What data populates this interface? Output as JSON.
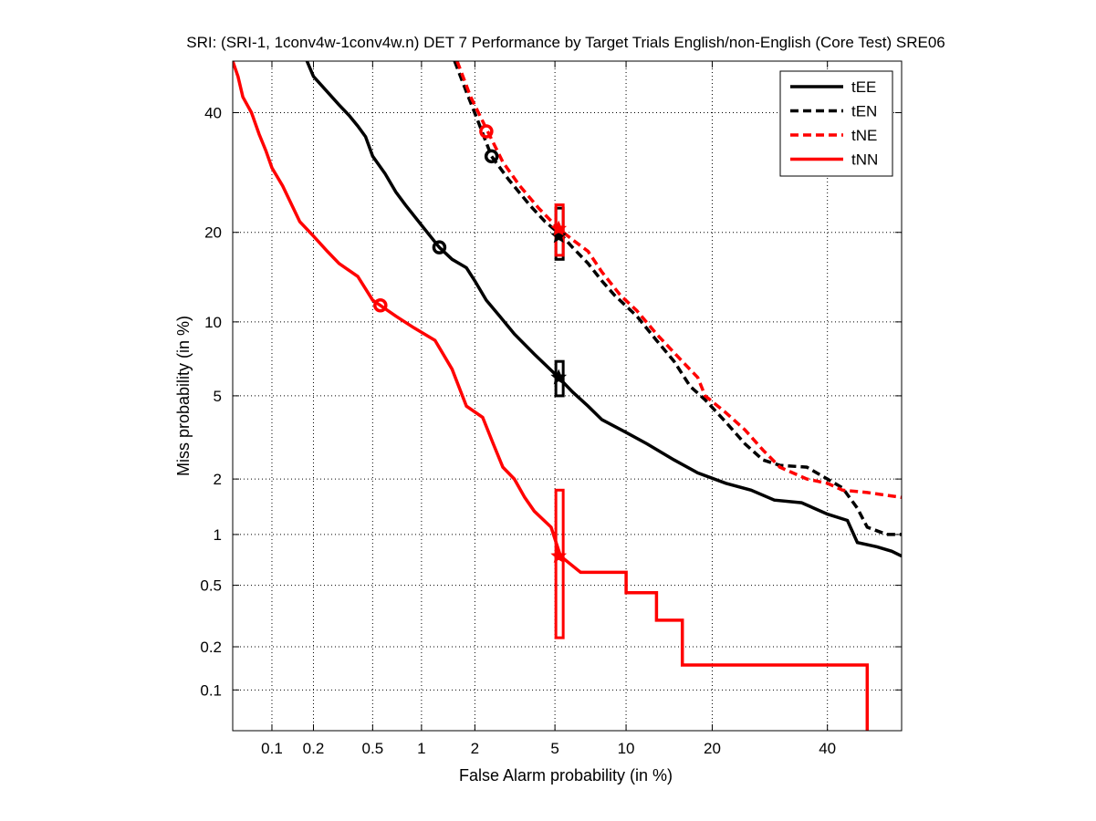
{
  "chart_data": {
    "type": "line",
    "title": "SRI: (SRI-1, 1conv4w-1conv4w.n) DET 7 Performance by Target Trials English/non-English (Core Test) SRE06",
    "xlabel": "False Alarm probability (in %)",
    "ylabel": "Miss probability (in %)",
    "x_scale": "probit",
    "y_scale": "probit",
    "xlim": [
      0.05,
      55
    ],
    "ylim": [
      0.05,
      50
    ],
    "x_ticks": [
      0.1,
      0.2,
      0.5,
      1,
      2,
      5,
      10,
      20,
      40
    ],
    "x_tick_labels": [
      "0.1",
      "0.2",
      "0.5",
      "1",
      "2",
      "5",
      "10",
      "20",
      "40"
    ],
    "y_ticks": [
      0.1,
      0.2,
      0.5,
      1,
      2,
      5,
      10,
      20,
      40
    ],
    "y_tick_labels": [
      "0.1",
      "0.2",
      "0.5",
      "1",
      "2",
      "5",
      "10",
      "20",
      "40"
    ],
    "grid": true,
    "legend_position": "top-right",
    "series": [
      {
        "name": "tEE",
        "color": "#000000",
        "style": "solid",
        "points": [
          [
            0.18,
            50
          ],
          [
            0.2,
            47
          ],
          [
            0.25,
            44
          ],
          [
            0.3,
            41.5
          ],
          [
            0.35,
            39.5
          ],
          [
            0.4,
            37.5
          ],
          [
            0.45,
            35.5
          ],
          [
            0.5,
            32
          ],
          [
            0.6,
            29
          ],
          [
            0.7,
            26
          ],
          [
            0.8,
            24
          ],
          [
            1.0,
            21
          ],
          [
            1.27,
            18
          ],
          [
            1.5,
            16.5
          ],
          [
            1.8,
            15.5
          ],
          [
            2.0,
            14
          ],
          [
            2.3,
            12
          ],
          [
            2.7,
            10.5
          ],
          [
            3.2,
            9
          ],
          [
            4.0,
            7.5
          ],
          [
            5.2,
            6
          ],
          [
            6.0,
            5.2
          ],
          [
            7.0,
            4.5
          ],
          [
            8.0,
            3.9
          ],
          [
            10.0,
            3.4
          ],
          [
            12.0,
            3.0
          ],
          [
            15.0,
            2.5
          ],
          [
            18.0,
            2.15
          ],
          [
            22.0,
            1.9
          ],
          [
            26.0,
            1.75
          ],
          [
            30.0,
            1.55
          ],
          [
            35.0,
            1.5
          ],
          [
            40.0,
            1.3
          ],
          [
            44.0,
            1.2
          ],
          [
            46.0,
            0.9
          ],
          [
            50.0,
            0.85
          ],
          [
            53.0,
            0.8
          ],
          [
            55.0,
            0.75
          ]
        ]
      },
      {
        "name": "tEN",
        "color": "#000000",
        "style": "dashed",
        "points": [
          [
            1.55,
            50
          ],
          [
            1.8,
            44
          ],
          [
            2.1,
            38
          ],
          [
            2.45,
            32
          ],
          [
            3.0,
            28
          ],
          [
            3.8,
            24
          ],
          [
            4.5,
            21.5
          ],
          [
            5.4,
            19.5
          ],
          [
            6.0,
            18
          ],
          [
            7.0,
            16
          ],
          [
            8.0,
            14
          ],
          [
            9.0,
            12.5
          ],
          [
            11.0,
            10.5
          ],
          [
            13.0,
            8.5
          ],
          [
            15.0,
            7
          ],
          [
            17.0,
            5.5
          ],
          [
            19.0,
            4.8
          ],
          [
            22.0,
            3.8
          ],
          [
            25.0,
            3.0
          ],
          [
            28.0,
            2.5
          ],
          [
            31.0,
            2.35
          ],
          [
            36.0,
            2.3
          ],
          [
            40.0,
            2.0
          ],
          [
            43.0,
            1.8
          ],
          [
            46.0,
            1.4
          ],
          [
            48.0,
            1.1
          ],
          [
            52.0,
            1.0
          ],
          [
            55.0,
            1.0
          ]
        ]
      },
      {
        "name": "tNE",
        "color": "#ff0000",
        "style": "dashed",
        "points": [
          [
            1.6,
            50
          ],
          [
            1.9,
            43
          ],
          [
            2.3,
            37
          ],
          [
            2.8,
            31
          ],
          [
            3.4,
            27
          ],
          [
            4.2,
            23.5
          ],
          [
            5.2,
            20.5
          ],
          [
            6.0,
            19
          ],
          [
            7.0,
            17.5
          ],
          [
            8.0,
            15
          ],
          [
            9.5,
            12.5
          ],
          [
            11.0,
            11
          ],
          [
            13.0,
            9
          ],
          [
            16.0,
            7
          ],
          [
            18.0,
            6
          ],
          [
            19.0,
            5
          ],
          [
            22.0,
            4.2
          ],
          [
            25.0,
            3.5
          ],
          [
            28.0,
            2.8
          ],
          [
            31.0,
            2.3
          ],
          [
            36.0,
            2.0
          ],
          [
            40.0,
            1.9
          ],
          [
            43.0,
            1.75
          ],
          [
            48.0,
            1.7
          ],
          [
            55.0,
            1.6
          ]
        ]
      },
      {
        "name": "tNN",
        "color": "#ff0000",
        "style": "solid",
        "points": [
          [
            0.05,
            50
          ],
          [
            0.055,
            47
          ],
          [
            0.06,
            43
          ],
          [
            0.07,
            40
          ],
          [
            0.08,
            36
          ],
          [
            0.09,
            33
          ],
          [
            0.1,
            30
          ],
          [
            0.12,
            27
          ],
          [
            0.14,
            24
          ],
          [
            0.16,
            21.5
          ],
          [
            0.2,
            19.5
          ],
          [
            0.25,
            17.5
          ],
          [
            0.3,
            16
          ],
          [
            0.4,
            14.5
          ],
          [
            0.5,
            12
          ],
          [
            0.56,
            11.5
          ],
          [
            0.7,
            10.5
          ],
          [
            0.9,
            9.5
          ],
          [
            1.2,
            8.5
          ],
          [
            1.5,
            6.5
          ],
          [
            1.8,
            4.5
          ],
          [
            2.2,
            4.0
          ],
          [
            2.5,
            3.0
          ],
          [
            2.8,
            2.3
          ],
          [
            3.2,
            2.0
          ],
          [
            3.6,
            1.6
          ],
          [
            4.0,
            1.35
          ],
          [
            4.8,
            1.1
          ],
          [
            5.3,
            0.75
          ],
          [
            6.5,
            0.6
          ],
          [
            10.0,
            0.6
          ],
          [
            10.0,
            0.45
          ],
          [
            13.0,
            0.45
          ],
          [
            13.0,
            0.3
          ],
          [
            16.0,
            0.3
          ],
          [
            16.0,
            0.15
          ],
          [
            48.0,
            0.15
          ],
          [
            48.0,
            0.05
          ]
        ]
      }
    ],
    "markers": [
      {
        "series": "tEE",
        "symbol": "circle",
        "x": 1.27,
        "y": 18
      },
      {
        "series": "tEN",
        "symbol": "circle",
        "x": 2.45,
        "y": 32
      },
      {
        "series": "tNE",
        "symbol": "circle",
        "x": 2.3,
        "y": 36.5
      },
      {
        "series": "tNN",
        "symbol": "circle",
        "x": 0.56,
        "y": 11.5
      },
      {
        "series": "tEE",
        "symbol": "star",
        "x": 5.2,
        "y": 6.0
      },
      {
        "series": "tEN",
        "symbol": "star",
        "x": 5.2,
        "y": 19.5
      },
      {
        "series": "tNE",
        "symbol": "star",
        "x": 5.2,
        "y": 20.5
      },
      {
        "series": "tNN",
        "symbol": "star",
        "x": 5.2,
        "y": 0.75
      }
    ],
    "intervals": [
      {
        "series": "tEE",
        "color": "#000000",
        "x_low": 5.05,
        "x_high": 5.45,
        "y_low": 5.0,
        "y_high": 7.0
      },
      {
        "series": "tEN",
        "color": "#000000",
        "x_low": 5.05,
        "x_high": 5.45,
        "y_low": 16.5,
        "y_high": 23.5
      },
      {
        "series": "tNE",
        "color": "#ff0000",
        "x_low": 5.05,
        "x_high": 5.45,
        "y_low": 17.0,
        "y_high": 24.0
      },
      {
        "series": "tNN",
        "color": "#ff0000",
        "x_low": 5.05,
        "x_high": 5.45,
        "y_low": 0.23,
        "y_high": 1.75
      }
    ]
  }
}
